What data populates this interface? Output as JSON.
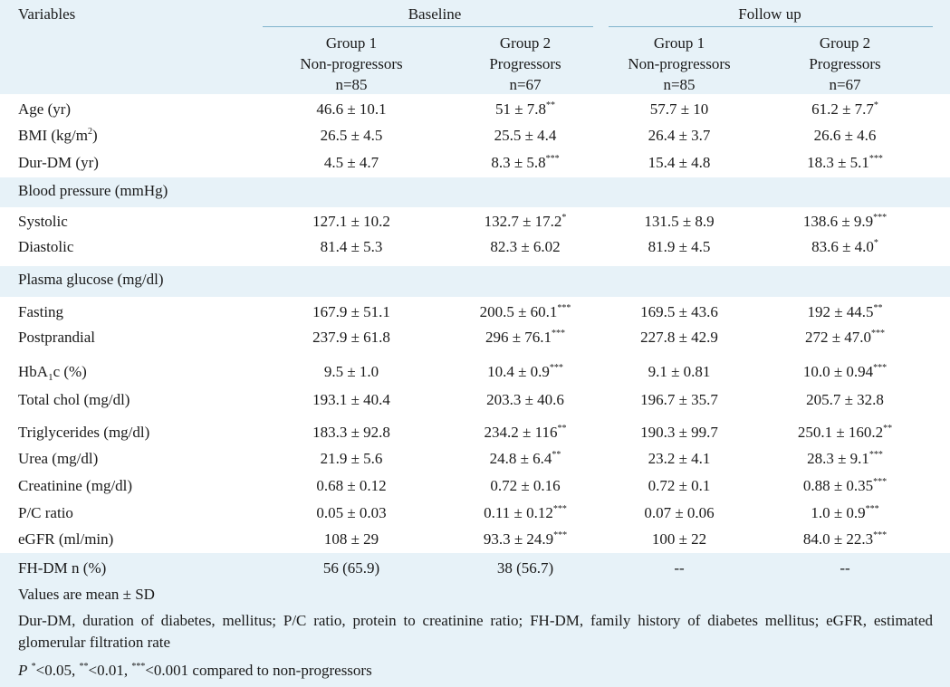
{
  "header": {
    "variables": "Variables",
    "baseline": "Baseline",
    "follow_up": "Follow up",
    "columns": [
      {
        "group": "Group 1",
        "status": "Non-progressors",
        "n": "n=85"
      },
      {
        "group": "Group 2",
        "status": "Progressors",
        "n": "n=67"
      },
      {
        "group": "Group 1",
        "status": "Non-progressors",
        "n": "n=85"
      },
      {
        "group": "Group 2",
        "status": "Progressors",
        "n": "n=67"
      }
    ]
  },
  "rows": {
    "age": {
      "label": "Age (yr)",
      "v1": "46.6 ± 10.1",
      "v2": "51 ± 7.8",
      "v2s": "**",
      "v3": "57.7 ± 10",
      "v4": "61.2 ± 7.7",
      "v4s": "*"
    },
    "bmi": {
      "label_pre": "BMI (kg/m",
      "label_sup": "2",
      "label_post": ")",
      "v1": "26.5 ± 4.5",
      "v2": "25.5 ± 4.4",
      "v3": "26.4 ± 3.7",
      "v4": "26.6 ± 4.6"
    },
    "dur": {
      "label": "Dur-DM (yr)",
      "v1": "4.5 ± 4.7",
      "v2": "8.3 ± 5.8",
      "v2s": "***",
      "v3": "15.4 ± 4.8",
      "v4": "18.3 ± 5.1",
      "v4s": "***"
    },
    "bp_section": {
      "label": "Blood pressure (mmHg)"
    },
    "sys": {
      "label": "Systolic",
      "v1": "127.1 ± 10.2",
      "v2": "132.7 ± 17.2",
      "v2s": "*",
      "v3": "131.5 ± 8.9",
      "v4": "138.6 ± 9.9",
      "v4s": "***"
    },
    "dia": {
      "label": "Diastolic",
      "v1": "81.4 ± 5.3",
      "v2": "82.3 ± 6.02",
      "v3": "81.9 ± 4.5",
      "v4": "83.6 ± 4.0",
      "v4s": "*"
    },
    "pg_section": {
      "label": "Plasma glucose (mg/dl)"
    },
    "fast": {
      "label": "Fasting",
      "v1": "167.9 ± 51.1",
      "v2": "200.5 ± 60.1",
      "v2s": "***",
      "v3": "169.5 ± 43.6",
      "v4": "192 ± 44.5",
      "v4s": "**"
    },
    "post": {
      "label": "Postprandial",
      "v1": "237.9 ± 61.8",
      "v2": "296 ± 76.1",
      "v2s": "***",
      "v3": "227.8 ± 42.9",
      "v4": "272 ± 47.0",
      "v4s": "***"
    },
    "hba": {
      "label_pre": "HbA",
      "label_sub": "1",
      "label_post": "c (%)",
      "v1": "9.5 ± 1.0",
      "v2": "10.4 ± 0.9",
      "v2s": "***",
      "v3": "9.1 ± 0.81",
      "v4": "10.0 ± 0.94",
      "v4s": "***"
    },
    "chol": {
      "label": "Total chol (mg/dl)",
      "v1": "193.1 ± 40.4",
      "v2": "203.3 ± 40.6",
      "v3": "196.7 ± 35.7",
      "v4": "205.7 ± 32.8"
    },
    "tg": {
      "label": "Triglycerides (mg/dl)",
      "v1": "183.3 ± 92.8",
      "v2": "234.2 ± 116",
      "v2s": "**",
      "v3": "190.3 ± 99.7",
      "v4": "250.1 ± 160.2",
      "v4s": "**"
    },
    "urea": {
      "label": "Urea (mg/dl)",
      "v1": "21.9 ± 5.6",
      "v2": "24.8 ± 6.4",
      "v2s": "**",
      "v3": "23.2 ± 4.1",
      "v4": "28.3 ± 9.1",
      "v4s": "***"
    },
    "creat": {
      "label": "Creatinine (mg/dl)",
      "v1": "0.68 ± 0.12",
      "v2": "0.72 ± 0.16",
      "v3": "0.72 ± 0.1",
      "v4": "0.88 ± 0.35",
      "v4s": "***"
    },
    "pc": {
      "label": "P/C ratio",
      "v1": "0.05 ± 0.03",
      "v2": "0.11 ± 0.12",
      "v2s": "***",
      "v3": "0.07 ± 0.06",
      "v4": "1.0 ± 0.9",
      "v4s": "***"
    },
    "egfr": {
      "label": "eGFR (ml/min)",
      "v1": "108 ± 29",
      "v2": "93.3 ± 24.9",
      "v2s": "***",
      "v3": "100 ± 22",
      "v4": "84.0 ± 22.3",
      "v4s": "***"
    },
    "fh": {
      "label": "FH-DM n (%)",
      "v1": "56 (65.9)",
      "v2": "38 (56.7)",
      "v3": "--",
      "v4": "--"
    }
  },
  "footnotes": {
    "values": "Values are mean ± SD",
    "abbrev": "Dur-DM, duration of diabetes, mellitus; P/C ratio, protein to creatinine ratio; FH-DM, family history of diabetes mellitus; eGFR, estimated glomerular filtration rate",
    "p_label": "P",
    "s1": "*",
    "t1": "<0.05, ",
    "s2": "**",
    "t2": "<0.01, ",
    "s3": "***",
    "t3": "<0.001 compared to non-progressors"
  },
  "colors": {
    "band": "#e7f2f8",
    "rule": "#7fb3cc",
    "text": "#1a1a1a"
  }
}
